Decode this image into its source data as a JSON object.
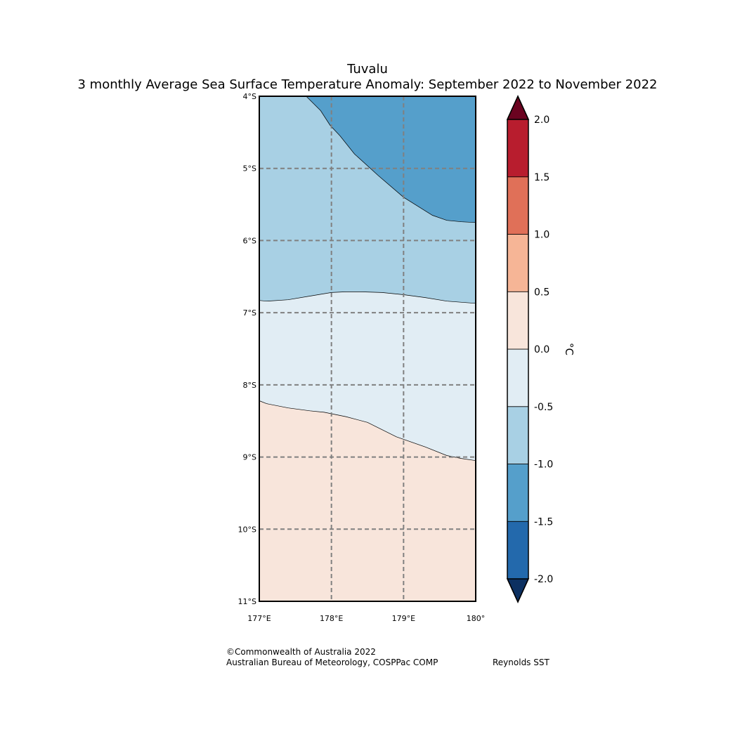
{
  "title": "Tuvalu",
  "subtitle": "3 monthly Average Sea Surface Temperature Anomaly: September 2022 to November 2022",
  "map": {
    "lon_range": [
      177,
      180
    ],
    "lat_range": [
      -11,
      -4
    ],
    "lat_labels": [
      "4°S",
      "5°S",
      "6°S",
      "7°S",
      "8°S",
      "9°S",
      "10°S",
      "11°S"
    ],
    "lon_labels": [
      "177°E",
      "178°E",
      "179°E",
      "180°"
    ],
    "regions": [
      {
        "name": "anomaly -1.5 to -1.0",
        "color": "#559fcb",
        "boundary": [
          [
            177.65,
            -4.0
          ],
          [
            177.75,
            -4.1
          ],
          [
            177.85,
            -4.2
          ],
          [
            177.98,
            -4.4
          ],
          [
            178.12,
            -4.55
          ],
          [
            178.32,
            -4.8
          ],
          [
            178.65,
            -5.1
          ],
          [
            179.0,
            -5.4
          ],
          [
            179.4,
            -5.65
          ],
          [
            179.6,
            -5.72
          ],
          [
            179.8,
            -5.74
          ],
          [
            180.0,
            -5.75
          ]
        ]
      },
      {
        "name": "anomaly -1.0 to -0.5",
        "color": "#a8d0e4",
        "boundary": [
          [
            177.0,
            -6.83
          ],
          [
            177.1,
            -6.84
          ],
          [
            177.4,
            -6.82
          ],
          [
            177.7,
            -6.77
          ],
          [
            178.0,
            -6.72
          ],
          [
            178.2,
            -6.71
          ],
          [
            178.4,
            -6.71
          ],
          [
            178.7,
            -6.72
          ],
          [
            179.0,
            -6.75
          ],
          [
            179.3,
            -6.79
          ],
          [
            179.6,
            -6.84
          ],
          [
            180.0,
            -6.87
          ]
        ]
      },
      {
        "name": "anomaly -0.5 to 0.0",
        "color": "#e1edf4",
        "boundary": [
          [
            177.0,
            -8.22
          ],
          [
            177.1,
            -8.26
          ],
          [
            177.4,
            -8.32
          ],
          [
            177.7,
            -8.36
          ],
          [
            177.9,
            -8.38
          ],
          [
            178.2,
            -8.44
          ],
          [
            178.5,
            -8.52
          ],
          [
            178.9,
            -8.72
          ],
          [
            179.3,
            -8.86
          ],
          [
            179.6,
            -8.98
          ],
          [
            179.8,
            -9.02
          ],
          [
            180.0,
            -9.05
          ]
        ]
      },
      {
        "name": "anomaly 0.0 to 0.5",
        "color": "#f8e5db"
      }
    ]
  },
  "colorbar": {
    "unit": "°C",
    "ticks": [
      "2.0",
      "1.5",
      "1.0",
      "0.5",
      "0.0",
      "-0.5",
      "-1.0",
      "-1.5",
      "-2.0"
    ],
    "levels": [
      {
        "range": "-2.0 to -1.5",
        "color": "#2369ac"
      },
      {
        "range": "-1.5 to -1.0",
        "color": "#559fcb"
      },
      {
        "range": "-1.0 to -0.5",
        "color": "#a8d0e4"
      },
      {
        "range": "-0.5 to 0.0",
        "color": "#e1edf4"
      },
      {
        "range": "0.0 to 0.5",
        "color": "#f8e5db"
      },
      {
        "range": "0.5 to 1.0",
        "color": "#f6b596"
      },
      {
        "range": "1.0 to 1.5",
        "color": "#e07058"
      },
      {
        "range": "1.5 to 2.0",
        "color": "#b81d2e"
      }
    ],
    "under_color": "#0c3061",
    "over_color": "#6b0320"
  },
  "footer": {
    "copyright": "©Commonwealth of Australia 2022",
    "agency": "Australian Bureau of Meteorology, COSPPac COMP",
    "source": "Reynolds SST"
  }
}
